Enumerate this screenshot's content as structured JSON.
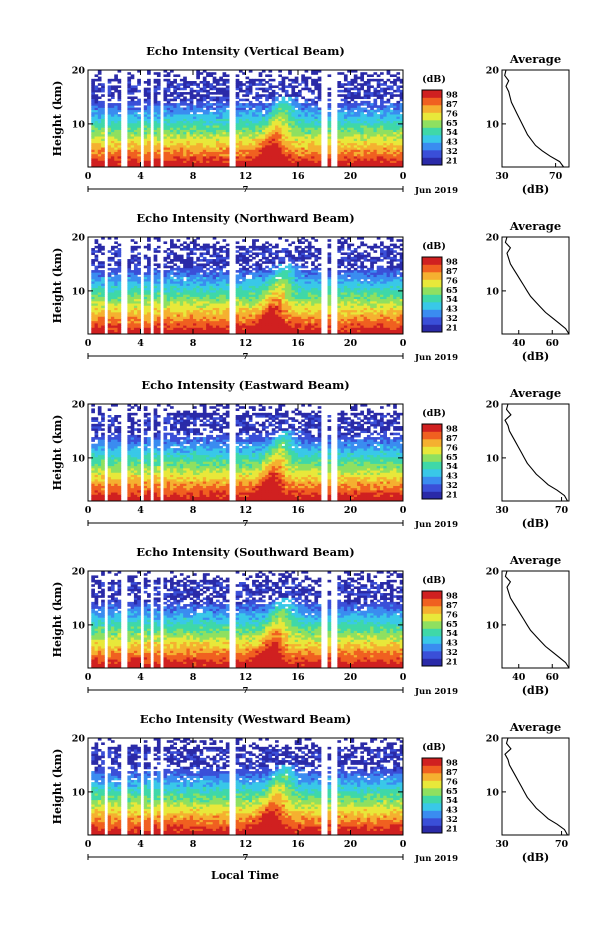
{
  "chart_data": {
    "type": "heatmap",
    "date_label": "Jun 2019",
    "date_mark": "7",
    "xlabel": "Local Time",
    "ylabel": "Height (km)",
    "colorbar_unit": "(dB)",
    "colorbar_levels": [
      "21",
      "32",
      "43",
      "54",
      "65",
      "76",
      "87",
      "98"
    ],
    "profile_title": "Average",
    "profile_xlabel": "(dB)",
    "x_ticks": [
      "0",
      "4",
      "8",
      "12",
      "16",
      "20",
      "0"
    ],
    "y_ticks": [
      "10",
      "20"
    ],
    "x_range_hours": [
      0,
      24
    ],
    "y_range_km": [
      2,
      20
    ],
    "data_gaps_hours": [
      [
        0,
        0.3
      ],
      [
        1.3,
        1.6
      ],
      [
        2.4,
        3.1
      ],
      [
        4.1,
        4.3
      ],
      [
        4.7,
        5.1
      ],
      [
        5.4,
        5.7
      ],
      [
        10.7,
        11.3
      ],
      [
        17.8,
        18.2
      ],
      [
        18.6,
        19.0
      ]
    ],
    "panels": [
      {
        "title": "Echo Intensity (Vertical Beam)",
        "profile_ticks": [
          "30",
          "70"
        ],
        "profile_xlim": [
          30,
          80
        ],
        "profile_height_km": [
          2,
          3,
          4,
          5,
          6,
          7,
          8,
          9,
          10,
          11,
          12,
          13,
          14,
          15,
          16,
          17,
          18,
          19,
          20
        ],
        "profile_db": [
          76,
          73,
          66,
          60,
          55,
          52,
          49,
          47,
          45,
          43,
          41,
          39,
          37,
          36,
          35,
          33,
          35,
          32,
          33
        ]
      },
      {
        "title": "Echo Intensity (Northward Beam)",
        "profile_ticks": [
          "40",
          "60"
        ],
        "profile_xlim": [
          30,
          70
        ],
        "profile_height_km": [
          2,
          3,
          4,
          5,
          6,
          7,
          8,
          9,
          10,
          11,
          12,
          13,
          14,
          15,
          16,
          17,
          18,
          19,
          20
        ],
        "profile_db": [
          70,
          68,
          64,
          60,
          56,
          53,
          50,
          47,
          45,
          43,
          41,
          39,
          37,
          35,
          34,
          33,
          35,
          32,
          33
        ]
      },
      {
        "title": "Echo Intensity (Eastward Beam)",
        "profile_ticks": [
          "30",
          "70"
        ],
        "profile_xlim": [
          30,
          75
        ],
        "profile_height_km": [
          2,
          3,
          4,
          5,
          6,
          7,
          8,
          9,
          10,
          11,
          12,
          13,
          14,
          15,
          16,
          17,
          18,
          19,
          20
        ],
        "profile_db": [
          74,
          72,
          67,
          61,
          57,
          53,
          50,
          47,
          45,
          43,
          41,
          39,
          37,
          35,
          34,
          32,
          36,
          33,
          34
        ]
      },
      {
        "title": "Echo Intensity (Southward Beam)",
        "profile_ticks": [
          "40",
          "60"
        ],
        "profile_xlim": [
          30,
          70
        ],
        "profile_height_km": [
          2,
          3,
          4,
          5,
          6,
          7,
          8,
          9,
          10,
          11,
          12,
          13,
          14,
          15,
          16,
          17,
          18,
          19,
          20
        ],
        "profile_db": [
          70,
          68,
          64,
          60,
          56,
          53,
          50,
          47,
          45,
          43,
          41,
          39,
          37,
          35,
          34,
          33,
          35,
          32,
          33
        ]
      },
      {
        "title": "Echo Intensity (Westward Beam)",
        "profile_ticks": [
          "30",
          "70"
        ],
        "profile_xlim": [
          30,
          75
        ],
        "profile_height_km": [
          2,
          3,
          4,
          5,
          6,
          7,
          8,
          9,
          10,
          11,
          12,
          13,
          14,
          15,
          16,
          17,
          18,
          19,
          20
        ],
        "profile_db": [
          74,
          72,
          67,
          61,
          57,
          53,
          50,
          47,
          45,
          43,
          41,
          39,
          37,
          35,
          34,
          32,
          36,
          33,
          34
        ]
      }
    ],
    "colormap": [
      "#2a2aa8",
      "#3a4fd8",
      "#3a8cf0",
      "#39c8e8",
      "#3fd8a8",
      "#8fe060",
      "#e8e83a",
      "#f5b030",
      "#f06020",
      "#d02020"
    ]
  }
}
